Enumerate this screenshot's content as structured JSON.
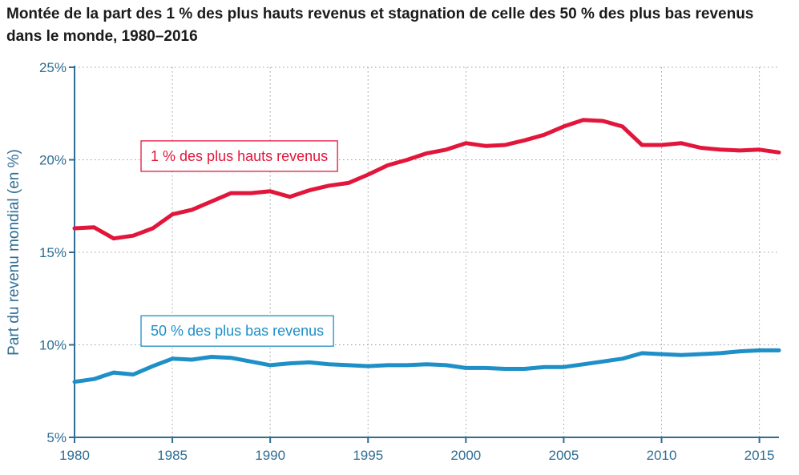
{
  "chart_data": {
    "type": "line",
    "title": "Montée de la part des 1 % des plus hauts revenus et stagnation de celle des 50 % des plus bas revenus dans le monde, 1980–2016",
    "xlabel": "",
    "ylabel": "Part du revenu mondial (en %)",
    "xlim": [
      1980,
      2016
    ],
    "ylim": [
      5,
      25
    ],
    "xticks": [
      1980,
      1985,
      1990,
      1995,
      2000,
      2005,
      2010,
      2015
    ],
    "yticks": [
      5,
      10,
      15,
      20,
      25
    ],
    "ytick_labels": [
      "5%",
      "10%",
      "15%",
      "20%",
      "25%"
    ],
    "grid": true,
    "x": [
      1980,
      1981,
      1982,
      1983,
      1984,
      1985,
      1986,
      1987,
      1988,
      1989,
      1990,
      1991,
      1992,
      1993,
      1994,
      1995,
      1996,
      1997,
      1998,
      1999,
      2000,
      2001,
      2002,
      2003,
      2004,
      2005,
      2006,
      2007,
      2008,
      2009,
      2010,
      2011,
      2012,
      2013,
      2014,
      2015,
      2016
    ],
    "series": [
      {
        "name": "1 % des plus hauts revenus",
        "color": "#e2163b",
        "values": [
          16.3,
          16.35,
          15.75,
          15.9,
          16.3,
          17.05,
          17.3,
          17.75,
          18.2,
          18.2,
          18.3,
          18.0,
          18.35,
          18.6,
          18.75,
          19.2,
          19.7,
          20.0,
          20.35,
          20.55,
          20.9,
          20.75,
          20.8,
          21.05,
          21.35,
          21.8,
          22.15,
          22.1,
          21.8,
          20.8,
          20.8,
          20.9,
          20.65,
          20.55,
          20.5,
          20.55,
          20.4
        ]
      },
      {
        "name": "50 % des plus bas revenus",
        "color": "#1e8fc7",
        "values": [
          8.0,
          8.15,
          8.5,
          8.4,
          8.85,
          9.25,
          9.2,
          9.35,
          9.3,
          9.1,
          8.9,
          9.0,
          9.05,
          8.95,
          8.9,
          8.85,
          8.9,
          8.9,
          8.95,
          8.9,
          8.75,
          8.75,
          8.7,
          8.7,
          8.8,
          8.8,
          8.95,
          9.1,
          9.25,
          9.55,
          9.5,
          9.45,
          9.5,
          9.55,
          9.65,
          9.7,
          9.7
        ]
      }
    ]
  }
}
